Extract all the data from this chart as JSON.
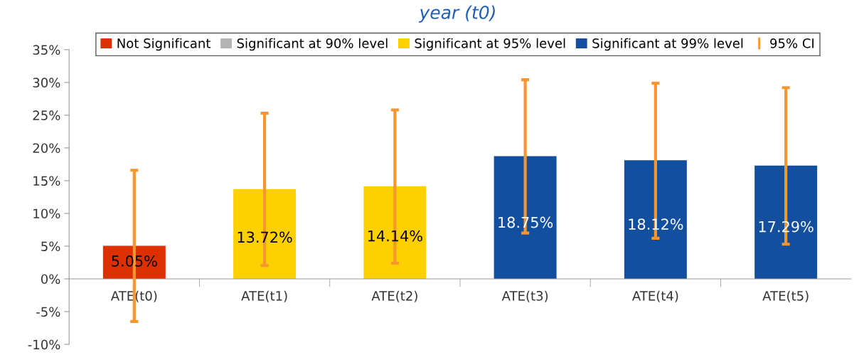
{
  "chart_data": {
    "type": "bar",
    "title": "year (t0)",
    "categories": [
      "ATE(t0)",
      "ATE(t1)",
      "ATE(t2)",
      "ATE(t3)",
      "ATE(t4)",
      "ATE(t5)"
    ],
    "series": [
      {
        "name": "Not Significant",
        "color": "#dc3000",
        "values": [
          5.05,
          null,
          null,
          null,
          null,
          null
        ],
        "value_labels": [
          "5.05%",
          null,
          null,
          null,
          null,
          null
        ],
        "errors": [
          [
            -6.5,
            16.6
          ],
          null,
          null,
          null,
          null,
          null
        ]
      },
      {
        "name": "Significant at 90% level",
        "color": "#b4b4b4",
        "values": [
          null,
          null,
          null,
          null,
          null,
          null
        ]
      },
      {
        "name": "Significant at 95% level",
        "color": "#ffd000",
        "values": [
          null,
          13.72,
          14.14,
          null,
          null,
          null
        ],
        "value_labels": [
          null,
          "13.72%",
          "14.14%",
          null,
          null,
          null
        ],
        "errors": [
          null,
          [
            2.05,
            25.3
          ],
          [
            2.4,
            25.8
          ],
          null,
          null,
          null
        ]
      },
      {
        "name": "Significant at 99% level",
        "color": "#134f9f",
        "values": [
          null,
          null,
          null,
          18.75,
          18.12,
          17.29
        ],
        "value_labels": [
          null,
          null,
          null,
          "18.75%",
          "18.12%",
          "17.29%"
        ],
        "errors": [
          null,
          null,
          null,
          [
            7.0,
            30.4
          ],
          [
            6.2,
            29.9
          ],
          [
            5.3,
            29.2
          ]
        ]
      },
      {
        "name": "95% CI",
        "type": "scatter",
        "marker": "none",
        "color": "#f7962f",
        "values": [
          null,
          null,
          null,
          null,
          null,
          null
        ]
      }
    ],
    "ylim": [
      -10,
      35
    ],
    "yticks": [
      {
        "value": -10,
        "label": "-10%"
      },
      {
        "value": -5,
        "label": "-5%"
      },
      {
        "value": 0,
        "label": "0%"
      },
      {
        "value": 5,
        "label": "5%"
      },
      {
        "value": 10,
        "label": "10%"
      },
      {
        "value": 15,
        "label": "15%"
      },
      {
        "value": 20,
        "label": "20%"
      },
      {
        "value": 25,
        "label": "25%"
      },
      {
        "value": 30,
        "label": "30%"
      },
      {
        "value": 35,
        "label": "35%"
      }
    ],
    "grid": false,
    "legend": "top"
  }
}
